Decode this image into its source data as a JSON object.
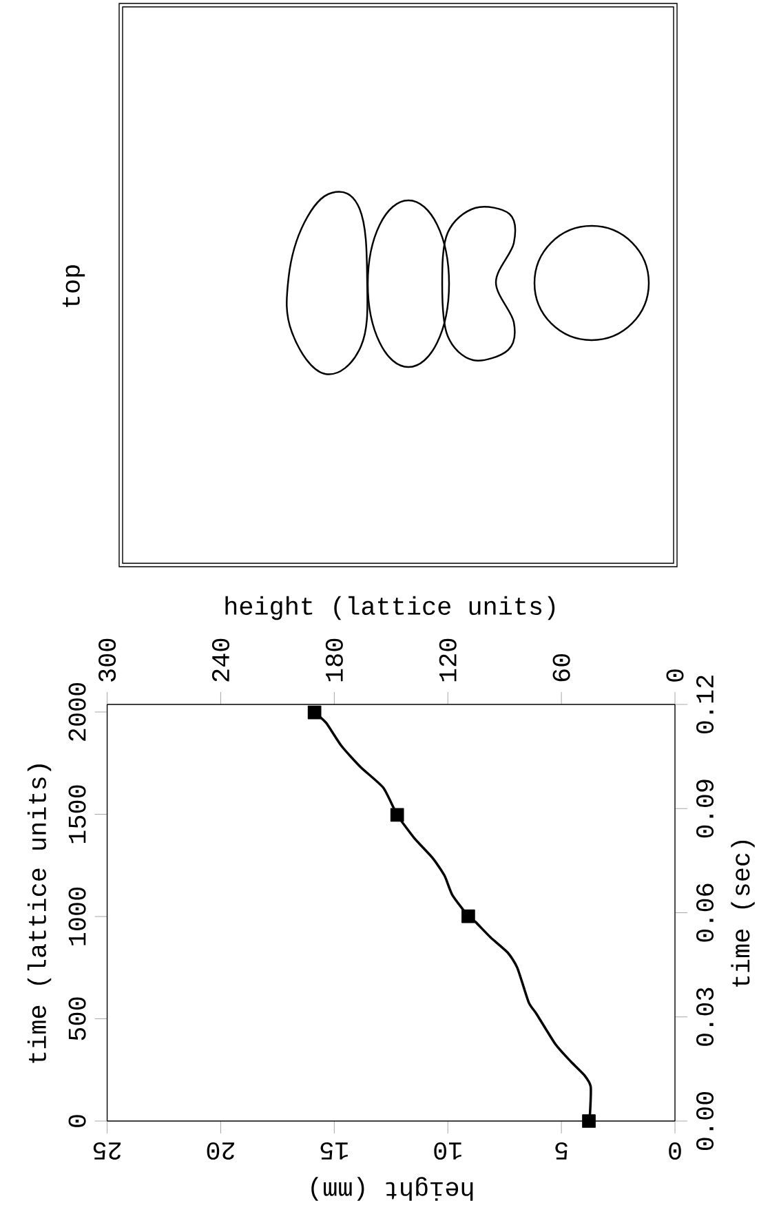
{
  "chart_data": {
    "type": "line",
    "xlabel": "height (mm)",
    "ylabel": "time (sec)",
    "x2label": "height (lattice units)",
    "y2label": "time (lattice units)",
    "annotations": [
      "top"
    ],
    "xlim": [
      25,
      0
    ],
    "xticks": [
      25,
      20,
      15,
      10,
      5,
      0
    ],
    "ylim": [
      0,
      0.12
    ],
    "yticks": [
      {
        "value": 0,
        "label": "0.00"
      },
      {
        "value": 0.03,
        "label": "0.03"
      },
      {
        "value": 0.06,
        "label": "0.06"
      },
      {
        "value": 0.09,
        "label": "0.09"
      },
      {
        "value": 0.12,
        "label": "0.12"
      }
    ],
    "x2lim": [
      300,
      0
    ],
    "x2ticks": [
      300,
      240,
      180,
      120,
      60,
      0
    ],
    "y2lim": [
      0,
      2037
    ],
    "y2ticks": [
      0,
      500,
      1000,
      1500,
      2000
    ],
    "series": [
      {
        "type": "line",
        "marker": "none",
        "color": "#000000",
        "x": [
          3.79,
          3.74,
          3.71,
          3.99,
          4.58,
          5.26,
          6.1,
          6.44,
          6.94,
          7.36,
          8.12,
          8.79,
          9.1,
          9.8,
          10.14,
          10.65,
          11.49,
          12.23,
          12.84,
          13.85,
          14.69,
          15.36,
          15.87
        ],
        "values": [
          0,
          0.0022,
          0.0099,
          0.0132,
          0.0171,
          0.0221,
          0.0309,
          0.0342,
          0.0441,
          0.0485,
          0.0529,
          0.0574,
          0.059,
          0.0651,
          0.0706,
          0.0756,
          0.0816,
          0.0882,
          0.096,
          0.102,
          0.1081,
          0.1147,
          0.1177
        ]
      },
      {
        "type": "scatter",
        "marker": "square",
        "color": "#000000",
        "x": [
          3.79,
          9.1,
          12.23,
          15.87
        ],
        "values": [
          0,
          0.059,
          0.0882,
          0.1177
        ]
      }
    ]
  }
}
